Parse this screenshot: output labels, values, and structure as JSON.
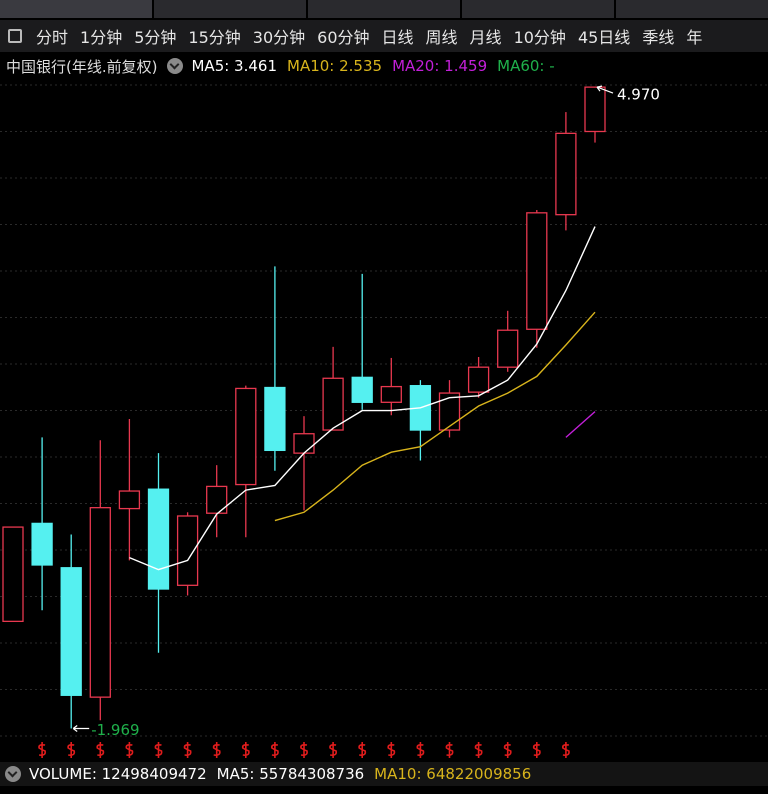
{
  "toolbar": [
    "分时",
    "1分钟",
    "5分钟",
    "15分钟",
    "30分钟",
    "60分钟",
    "日线",
    "周线",
    "月线",
    "10分钟",
    "45日线",
    "季线",
    "年"
  ],
  "chart_data": {
    "type": "candlestick",
    "title": "中国银行(年线.前复权)",
    "open": [
      -0.81,
      0.25,
      -0.23,
      -1.63,
      0.41,
      0.62,
      -0.42,
      0.36,
      0.67,
      1.72,
      1.01,
      1.26,
      1.83,
      1.56,
      1.74,
      1.26,
      1.67,
      1.94,
      2.35,
      3.59,
      4.49
    ],
    "high": [
      0.21,
      1.18,
      0.13,
      1.15,
      1.38,
      1.01,
      0.37,
      0.88,
      1.74,
      3.03,
      1.41,
      2.16,
      2.95,
      2.04,
      1.8,
      1.8,
      2.05,
      2.55,
      3.64,
      4.7,
      4.97
    ],
    "low": [
      -0.81,
      -0.69,
      -1.969,
      -1.88,
      -0.15,
      -1.15,
      -0.53,
      0.1,
      0.1,
      0.82,
      0.39,
      1.26,
      1.48,
      1.42,
      0.93,
      1.18,
      1.61,
      1.89,
      2.15,
      3.42,
      4.37
    ],
    "close": [
      0.21,
      -0.2,
      -1.61,
      0.42,
      0.6,
      -0.46,
      0.33,
      0.65,
      1.71,
      1.04,
      1.22,
      1.82,
      1.56,
      1.73,
      1.26,
      1.66,
      1.94,
      2.34,
      3.61,
      4.47,
      4.97
    ],
    "up_color": "#e8384f",
    "down_color": "#55f0f0",
    "high_label": "4.970",
    "low_label": "-1.969",
    "ylim": [
      -2.31,
      5.35
    ],
    "grid": true,
    "series": [
      {
        "name": "MA5: 3.461",
        "color": "#ffffff",
        "values": [
          null,
          null,
          null,
          null,
          -0.12,
          -0.25,
          -0.15,
          0.35,
          0.61,
          0.66,
          1.01,
          1.28,
          1.47,
          1.47,
          1.5,
          1.61,
          1.63,
          1.8,
          2.19,
          2.77,
          3.461
        ]
      },
      {
        "name": "MA10: 2.535",
        "color": "#d8b41c",
        "values": [
          null,
          null,
          null,
          null,
          null,
          null,
          null,
          null,
          null,
          0.28,
          0.37,
          0.61,
          0.88,
          1.02,
          1.08,
          1.3,
          1.52,
          1.66,
          1.84,
          2.18,
          2.535
        ]
      },
      {
        "name": "MA20: 1.459",
        "color": "#c21fd8",
        "values": [
          null,
          null,
          null,
          null,
          null,
          null,
          null,
          null,
          null,
          null,
          null,
          null,
          null,
          null,
          null,
          null,
          null,
          null,
          null,
          1.18,
          1.459
        ]
      },
      {
        "name": "MA60: -",
        "color": "#1fb04b",
        "values": [
          null,
          null,
          null,
          null,
          null,
          null,
          null,
          null,
          null,
          null,
          null,
          null,
          null,
          null,
          null,
          null,
          null,
          null,
          null,
          null,
          null
        ]
      }
    ]
  },
  "volume_bar": [
    {
      "text": "VOLUME: 12498409472",
      "color": "#ffffff"
    },
    {
      "text": "MA5: 55784308736",
      "color": "#ffffff"
    },
    {
      "text": "MA10: 64822009856",
      "color": "#d8b41c"
    }
  ]
}
